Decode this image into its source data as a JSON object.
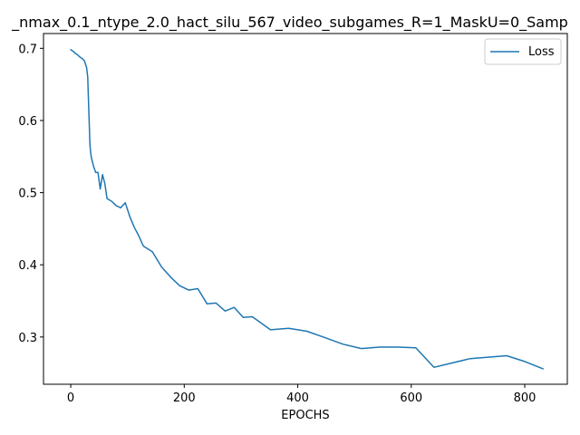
{
  "chart_data": {
    "type": "line",
    "title": "_nmax_0.1_ntype_2.0_hact_silu_567_video_subgames_R=1_MaskU=0_Samp",
    "xlabel": "EPOCHS",
    "ylabel": "",
    "xlim": [
      -48,
      875
    ],
    "ylim": [
      0.2345,
      0.7205
    ],
    "xticks": [
      0,
      200,
      400,
      600,
      800
    ],
    "yticks": [
      0.3,
      0.4,
      0.5,
      0.6,
      0.7
    ],
    "grid": false,
    "legend_position": "top-right",
    "series": [
      {
        "name": "Loss",
        "color": "#1f77b4",
        "x": [
          0,
          4,
          8,
          12,
          16,
          20,
          24,
          28,
          30,
          32,
          34,
          36,
          40,
          44,
          48,
          52,
          56,
          60,
          64,
          72,
          80,
          88,
          96,
          104,
          112,
          120,
          128,
          144,
          160,
          176,
          192,
          208,
          224,
          240,
          256,
          272,
          288,
          304,
          320,
          352,
          384,
          416,
          448,
          480,
          512,
          544,
          576,
          608,
          640,
          672,
          704,
          736,
          768,
          800,
          832
        ],
        "y": [
          0.698,
          0.696,
          0.693,
          0.691,
          0.688,
          0.686,
          0.683,
          0.673,
          0.66,
          0.61,
          0.565,
          0.55,
          0.537,
          0.528,
          0.528,
          0.505,
          0.525,
          0.513,
          0.492,
          0.488,
          0.482,
          0.479,
          0.486,
          0.467,
          0.452,
          0.44,
          0.426,
          0.418,
          0.397,
          0.383,
          0.371,
          0.365,
          0.367,
          0.346,
          0.347,
          0.336,
          0.341,
          0.327,
          0.328,
          0.31,
          0.312,
          0.308,
          0.299,
          0.29,
          0.284,
          0.286,
          0.286,
          0.285,
          0.258,
          0.264,
          0.27,
          0.272,
          0.274,
          0.266,
          0.256
        ]
      }
    ]
  }
}
